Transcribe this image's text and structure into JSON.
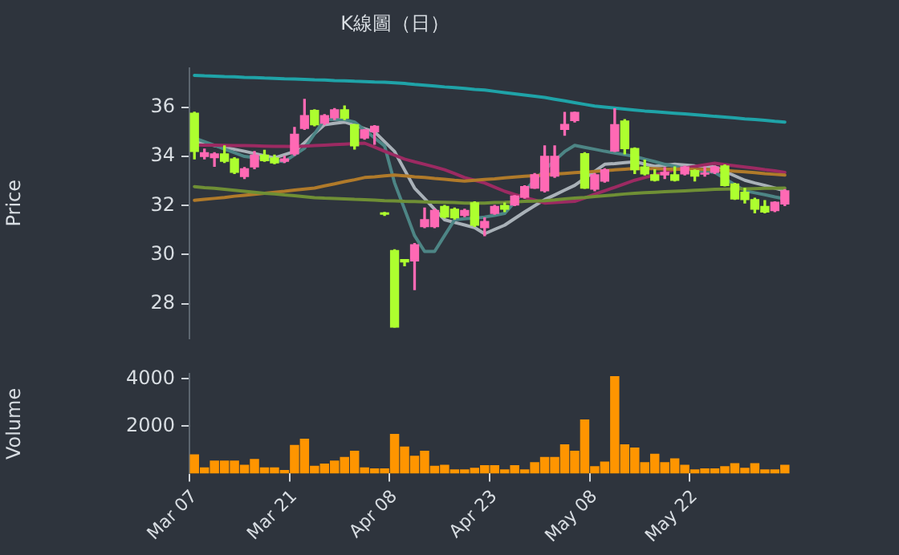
{
  "chart_data": [
    {
      "type": "candlestick",
      "title": "K線圖（日）",
      "ylabel": "Price",
      "tick_labels": "y",
      "legend": false,
      "grid": false,
      "ylim": [
        26.6,
        37.6
      ],
      "yticks": [
        28,
        30,
        32,
        34,
        36
      ],
      "categories": [
        null,
        null,
        null,
        null,
        null,
        null,
        null,
        null,
        null,
        null,
        null,
        null,
        null,
        null,
        null,
        null,
        null,
        null,
        null,
        null,
        null,
        null,
        null,
        null,
        null,
        null,
        null,
        null,
        null,
        null,
        null,
        null,
        null,
        null,
        null,
        null,
        null,
        null,
        null,
        null,
        null,
        null,
        null,
        null,
        null,
        null,
        null,
        null,
        null,
        null,
        null,
        null,
        null,
        null,
        null,
        null,
        null,
        null,
        null,
        null
      ],
      "ohlc": [
        [
          35.76,
          35.8,
          33.9,
          34.2
        ],
        [
          34.0,
          34.3,
          33.9,
          34.15
        ],
        [
          33.95,
          34.15,
          33.6,
          34.1
        ],
        [
          34.1,
          34.43,
          33.75,
          33.8
        ],
        [
          33.9,
          33.95,
          33.3,
          33.35
        ],
        [
          33.18,
          33.55,
          33.1,
          33.5
        ],
        [
          33.57,
          34.2,
          33.5,
          34.05
        ],
        [
          34.05,
          34.25,
          33.8,
          33.83
        ],
        [
          33.94,
          34.05,
          33.7,
          33.74
        ],
        [
          33.8,
          34.0,
          33.75,
          33.9
        ],
        [
          34.1,
          35.18,
          34.05,
          34.9
        ],
        [
          35.14,
          36.32,
          35.1,
          35.66
        ],
        [
          35.87,
          35.9,
          35.25,
          35.29
        ],
        [
          35.35,
          35.7,
          35.3,
          35.66
        ],
        [
          35.57,
          35.95,
          35.5,
          35.9
        ],
        [
          35.9,
          36.05,
          35.5,
          35.56
        ],
        [
          35.29,
          35.3,
          34.3,
          34.43
        ],
        [
          34.75,
          35.1,
          34.7,
          35.08
        ],
        [
          35.0,
          35.25,
          34.5,
          35.23
        ],
        [
          31.7,
          31.72,
          31.6,
          31.65
        ],
        [
          30.17,
          30.2,
          27.05,
          27.05
        ],
        [
          29.8,
          29.8,
          29.55,
          29.7
        ],
        [
          29.74,
          30.45,
          28.58,
          30.4
        ],
        [
          31.14,
          31.9,
          31.1,
          31.42
        ],
        [
          31.14,
          31.85,
          31.1,
          31.8
        ],
        [
          31.96,
          32.0,
          31.5,
          31.53
        ],
        [
          31.85,
          31.9,
          31.45,
          31.5
        ],
        [
          31.6,
          31.85,
          31.55,
          31.8
        ],
        [
          32.11,
          32.15,
          31.15,
          31.2
        ],
        [
          31.1,
          31.5,
          30.77,
          31.35
        ],
        [
          31.68,
          32.0,
          31.65,
          31.96
        ],
        [
          32.0,
          32.1,
          31.75,
          31.85
        ],
        [
          32.02,
          32.4,
          32.0,
          32.39
        ],
        [
          32.34,
          32.8,
          32.3,
          32.77
        ],
        [
          32.71,
          33.3,
          32.7,
          33.25
        ],
        [
          32.6,
          34.43,
          32.55,
          34.0
        ],
        [
          33.2,
          34.43,
          33.15,
          34.0
        ],
        [
          35.1,
          35.79,
          34.86,
          35.3
        ],
        [
          35.46,
          35.8,
          35.4,
          35.79
        ],
        [
          34.11,
          34.15,
          32.7,
          32.71
        ],
        [
          32.67,
          33.3,
          32.6,
          33.25
        ],
        [
          32.99,
          33.5,
          32.95,
          33.46
        ],
        [
          34.22,
          35.94,
          34.2,
          35.29
        ],
        [
          35.44,
          35.5,
          34.1,
          34.32
        ],
        [
          34.32,
          34.35,
          33.3,
          33.46
        ],
        [
          33.57,
          33.85,
          33.25,
          33.29
        ],
        [
          33.25,
          33.46,
          33.0,
          33.03
        ],
        [
          33.25,
          33.55,
          33.1,
          33.35
        ],
        [
          33.25,
          33.57,
          33.0,
          33.03
        ],
        [
          33.29,
          33.6,
          33.25,
          33.57
        ],
        [
          33.42,
          33.45,
          33.0,
          33.2
        ],
        [
          33.28,
          33.57,
          33.2,
          33.32
        ],
        [
          33.35,
          33.6,
          33.3,
          33.57
        ],
        [
          33.61,
          33.65,
          32.8,
          32.81
        ],
        [
          32.88,
          32.9,
          32.25,
          32.27
        ],
        [
          32.54,
          32.7,
          32.1,
          32.24
        ],
        [
          32.24,
          32.3,
          31.7,
          31.85
        ],
        [
          31.96,
          32.2,
          31.7,
          31.74
        ],
        [
          31.79,
          32.15,
          31.75,
          32.13
        ],
        [
          32.06,
          32.65,
          32.0,
          32.6
        ]
      ],
      "colors": [
        "#adff2f",
        "#ff69b4",
        "#ff69b4",
        "#adff2f",
        "#adff2f",
        "#ff69b4",
        "#ff69b4",
        "#adff2f",
        "#adff2f",
        "#ff69b4",
        "#ff69b4",
        "#ff69b4",
        "#adff2f",
        "#ff69b4",
        "#ff69b4",
        "#adff2f",
        "#adff2f",
        "#ff69b4",
        "#ff69b4",
        "#adff2f",
        "#adff2f",
        "#adff2f",
        "#ff69b4",
        "#ff69b4",
        "#ff69b4",
        "#adff2f",
        "#adff2f",
        "#ff69b4",
        "#adff2f",
        "#ff69b4",
        "#ff69b4",
        "#adff2f",
        "#ff69b4",
        "#ff69b4",
        "#ff69b4",
        "#ff69b4",
        "#ff69b4",
        "#ff69b4",
        "#ff69b4",
        "#adff2f",
        "#ff69b4",
        "#ff69b4",
        "#ff69b4",
        "#adff2f",
        "#adff2f",
        "#adff2f",
        "#adff2f",
        "#ff69b4",
        "#adff2f",
        "#ff69b4",
        "#adff2f",
        "#ff69b4",
        "#ff69b4",
        "#adff2f",
        "#adff2f",
        "#adff2f",
        "#adff2f",
        "#adff2f",
        "#ff69b4",
        "#ff69b4"
      ],
      "series": [
        {
          "type": "line",
          "color": "#1fa3a8",
          "values": [
            37.3,
            37.28,
            37.27,
            37.25,
            37.24,
            37.22,
            37.21,
            37.19,
            37.18,
            37.16,
            37.15,
            37.14,
            37.12,
            37.11,
            37.09,
            37.08,
            37.06,
            37.05,
            37.03,
            37.02,
            37.0,
            36.97,
            36.93,
            36.9,
            36.87,
            36.83,
            36.8,
            36.77,
            36.73,
            36.7,
            36.65,
            36.6,
            36.55,
            36.5,
            36.45,
            36.4,
            36.33,
            36.26,
            36.19,
            36.12,
            36.05,
            36.01,
            35.97,
            35.93,
            35.89,
            35.85,
            35.82,
            35.79,
            35.76,
            35.73,
            35.7,
            35.67,
            35.63,
            35.6,
            35.57,
            35.53,
            35.5,
            35.47,
            35.43,
            35.4
          ]
        },
        {
          "type": "line",
          "color": "#6f8f35",
          "values": [
            32.77,
            32.73,
            32.7,
            32.66,
            32.62,
            32.58,
            32.54,
            32.5,
            32.47,
            32.43,
            32.4,
            32.36,
            32.32,
            32.3,
            32.29,
            32.27,
            32.25,
            32.24,
            32.22,
            32.2,
            32.19,
            32.17,
            32.16,
            32.15,
            32.14,
            32.13,
            32.12,
            32.1,
            32.1,
            32.1,
            32.12,
            32.13,
            32.15,
            32.17,
            32.18,
            32.2,
            32.23,
            32.27,
            32.3,
            32.33,
            32.37,
            32.4,
            32.43,
            32.47,
            32.5,
            32.52,
            32.54,
            32.56,
            32.58,
            32.6,
            32.62,
            32.64,
            32.66,
            32.67,
            32.68,
            32.68,
            32.69,
            32.7,
            32.7,
            32.71
          ]
        },
        {
          "type": "line",
          "color": "#b07a2a",
          "values": [
            32.21,
            32.25,
            32.29,
            32.33,
            32.38,
            32.42,
            32.46,
            32.5,
            32.54,
            32.58,
            32.63,
            32.67,
            32.71,
            32.8,
            32.88,
            32.97,
            33.05,
            33.14,
            33.17,
            33.21,
            33.24,
            33.21,
            33.17,
            33.14,
            33.1,
            33.07,
            33.03,
            33.0,
            33.03,
            33.06,
            33.09,
            33.13,
            33.16,
            33.19,
            33.22,
            33.25,
            33.28,
            33.31,
            33.34,
            33.36,
            33.39,
            33.42,
            33.45,
            33.48,
            33.51,
            33.5,
            33.5,
            33.49,
            33.48,
            33.48,
            33.47,
            33.47,
            33.46,
            33.43,
            33.4,
            33.37,
            33.34,
            33.3,
            33.27,
            33.24
          ]
        },
        {
          "type": "line",
          "color": "#9c2a62",
          "values": [
            34.47,
            34.46,
            34.46,
            34.45,
            34.44,
            34.44,
            34.43,
            34.42,
            34.41,
            34.41,
            34.4,
            34.42,
            34.44,
            34.46,
            34.48,
            34.5,
            34.52,
            34.54,
            34.38,
            34.21,
            34.05,
            33.89,
            33.78,
            33.68,
            33.57,
            33.46,
            33.3,
            33.14,
            33.03,
            32.92,
            32.75,
            32.58,
            32.45,
            32.33,
            32.22,
            32.1,
            32.12,
            32.15,
            32.17,
            32.31,
            32.46,
            32.6,
            32.74,
            32.89,
            33.03,
            33.14,
            33.25,
            33.35,
            33.46,
            33.53,
            33.59,
            33.66,
            33.72,
            33.67,
            33.62,
            33.57,
            33.52,
            33.46,
            33.41,
            33.35
          ]
        },
        {
          "type": "line",
          "color": "#4d8585",
          "values": [
            34.75,
            34.6,
            34.45,
            34.3,
            34.15,
            34.0,
            33.95,
            33.9,
            33.84,
            33.79,
            34.06,
            34.33,
            34.92,
            35.5,
            35.5,
            35.5,
            35.4,
            35.08,
            34.75,
            34.43,
            32.92,
            31.85,
            30.77,
            30.13,
            30.13,
            30.78,
            31.42,
            31.46,
            31.49,
            31.53,
            31.6,
            31.68,
            32.14,
            32.6,
            33.03,
            33.46,
            33.83,
            34.2,
            34.45,
            34.37,
            34.29,
            34.21,
            34.14,
            34.07,
            34.0,
            33.89,
            33.79,
            33.68,
            33.6,
            33.51,
            33.44,
            33.4,
            33.35,
            33.1,
            32.85,
            32.6,
            32.52,
            32.44,
            32.35,
            32.27
          ]
        },
        {
          "type": "line",
          "color": "#a9b1b8",
          "values": [
            34.6,
            34.52,
            34.44,
            34.37,
            34.29,
            34.21,
            34.12,
            34.03,
            33.94,
            34.07,
            34.2,
            34.56,
            34.93,
            35.29,
            35.35,
            35.4,
            35.27,
            35.13,
            35.0,
            34.6,
            34.2,
            33.45,
            32.71,
            32.28,
            31.85,
            31.42,
            31.31,
            31.21,
            31.1,
            30.85,
            31.03,
            31.2,
            31.47,
            31.74,
            31.99,
            32.24,
            32.43,
            32.63,
            32.82,
            33.11,
            33.39,
            33.68,
            33.71,
            33.75,
            33.78,
            33.69,
            33.6,
            33.64,
            33.68,
            33.65,
            33.62,
            33.6,
            33.57,
            33.39,
            33.21,
            33.03,
            32.92,
            32.82,
            32.71,
            32.6
          ]
        }
      ]
    },
    {
      "type": "bar",
      "ylabel": "Volume",
      "legend": false,
      "grid": false,
      "ylim": [
        0,
        4200
      ],
      "yticks": [
        2000,
        4000
      ],
      "color": "#ff9500",
      "categories": [
        "Mar 07",
        null,
        null,
        null,
        null,
        null,
        null,
        null,
        null,
        null,
        "Mar 21",
        null,
        null,
        null,
        null,
        null,
        null,
        null,
        null,
        null,
        "Apr 08",
        null,
        null,
        null,
        null,
        null,
        null,
        null,
        null,
        null,
        "Apr 23",
        null,
        null,
        null,
        null,
        null,
        null,
        null,
        null,
        null,
        "May 08",
        null,
        null,
        null,
        null,
        null,
        null,
        null,
        null,
        null,
        "May 22",
        null,
        null,
        null,
        null,
        null,
        null,
        null,
        null,
        null
      ],
      "values": [
        813,
        264,
        549,
        549,
        549,
        374,
        615,
        264,
        264,
        154,
        1209,
        1473,
        330,
        418,
        549,
        703,
        967,
        264,
        220,
        220,
        1670,
        1143,
        747,
        967,
        330,
        374,
        176,
        176,
        242,
        352,
        352,
        176,
        352,
        176,
        484,
        703,
        703,
        1231,
        967,
        2286,
        308,
        505,
        4110,
        1231,
        1099,
        484,
        835,
        484,
        637,
        374,
        176,
        220,
        220,
        308,
        440,
        242,
        440,
        176,
        176,
        374
      ]
    }
  ]
}
